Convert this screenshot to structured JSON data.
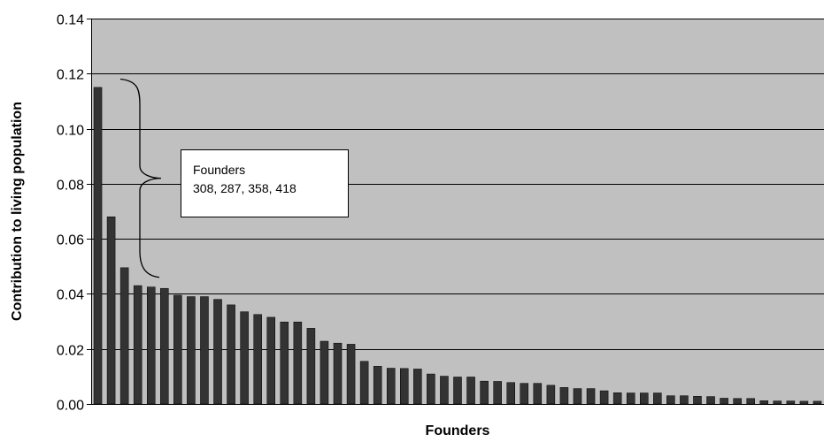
{
  "chart_data": {
    "type": "bar",
    "xlabel": "Founders",
    "ylabel": "Contribution to living population",
    "ylim": [
      0,
      0.14
    ],
    "yticks": [
      "0.00",
      "0.02",
      "0.04",
      "0.06",
      "0.08",
      "0.10",
      "0.12",
      "0.14"
    ],
    "grid": true,
    "plot_background": "#c0c0c0",
    "bar_color": "#333333",
    "values": [
      0.115,
      0.068,
      0.0495,
      0.043,
      0.0425,
      0.042,
      0.0395,
      0.039,
      0.039,
      0.038,
      0.036,
      0.0335,
      0.0325,
      0.0315,
      0.0298,
      0.0298,
      0.0275,
      0.0228,
      0.0221,
      0.0217,
      0.0155,
      0.0137,
      0.013,
      0.0129,
      0.0127,
      0.0109,
      0.0101,
      0.0098,
      0.0098,
      0.0083,
      0.0082,
      0.0078,
      0.0075,
      0.0075,
      0.0068,
      0.006,
      0.0056,
      0.0056,
      0.0048,
      0.0041,
      0.004,
      0.004,
      0.004,
      0.003,
      0.003,
      0.0028,
      0.0027,
      0.0021,
      0.002,
      0.002,
      0.0012,
      0.0011,
      0.0011,
      0.001,
      0.001
    ],
    "annotation": {
      "lines": [
        "Founders",
        "308, 287, 358, 418"
      ],
      "bracket_range": [
        0.046,
        0.118
      ]
    }
  }
}
